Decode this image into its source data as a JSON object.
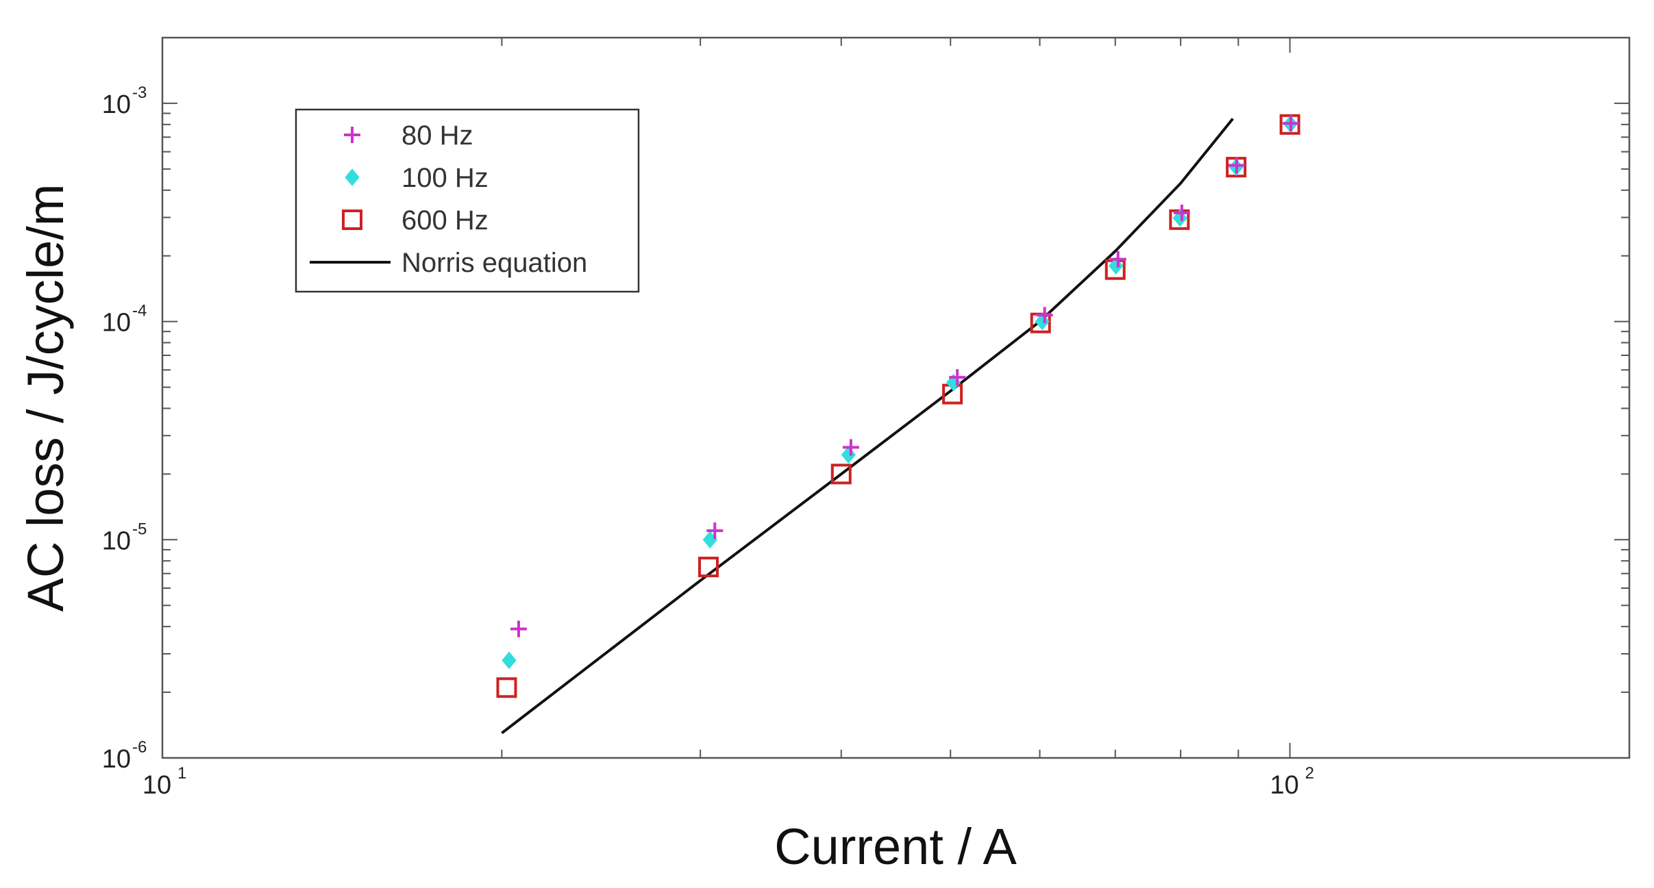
{
  "chart_data": {
    "type": "scatter",
    "title": "",
    "xlabel": "Current / A",
    "ylabel": "AC loss / J/cycle/m",
    "x_scale": "log",
    "y_scale": "log",
    "xlim": [
      10,
      200
    ],
    "ylim": [
      1e-06,
      0.002
    ],
    "x_ticks": [
      {
        "value": 10,
        "base": "10",
        "exp": "1"
      },
      {
        "value": 100,
        "base": "10",
        "exp": "2"
      }
    ],
    "y_ticks": [
      {
        "value": 1e-06,
        "base": "10",
        "exp": "-6"
      },
      {
        "value": 1e-05,
        "base": "10",
        "exp": "-5"
      },
      {
        "value": 0.0001,
        "base": "10",
        "exp": "-4"
      },
      {
        "value": 0.001,
        "base": "10",
        "exp": "-3"
      }
    ],
    "grid": false,
    "legend_position": "top-left",
    "series": [
      {
        "name": "80 Hz",
        "marker": "plus",
        "color": "#cc33cc",
        "points": [
          [
            20.7,
            3.9e-06
          ],
          [
            30.9,
            1.1e-05
          ],
          [
            40.8,
            2.65e-05
          ],
          [
            50.7,
            5.55e-05
          ],
          [
            60.6,
            0.000107
          ],
          [
            70.4,
            0.000193
          ],
          [
            80.2,
            0.000315
          ],
          [
            89.7,
            0.00052
          ],
          [
            100.2,
            0.00081
          ]
        ]
      },
      {
        "name": "100 Hz",
        "marker": "diamond",
        "color": "#33dddd",
        "points": [
          [
            20.3,
            2.8e-06
          ],
          [
            30.6,
            1e-05
          ],
          [
            40.6,
            2.45e-05
          ],
          [
            50.3,
            5.25e-05
          ],
          [
            60.3,
            0.0001
          ],
          [
            70.1,
            0.00018
          ],
          [
            79.9,
            0.000298
          ],
          [
            89.6,
            0.00051
          ],
          [
            100.1,
            0.000805
          ]
        ]
      },
      {
        "name": "600 Hz",
        "marker": "square",
        "color": "#cc2222",
        "points": [
          [
            20.2,
            2.1e-06
          ],
          [
            30.5,
            7.5e-06
          ],
          [
            40.0,
            2e-05
          ],
          [
            50.2,
            4.65e-05
          ],
          [
            60.1,
            9.85e-05
          ],
          [
            70.0,
            0.000173
          ],
          [
            79.8,
            0.000293
          ],
          [
            89.6,
            0.00051
          ],
          [
            100.0,
            0.0008
          ]
        ]
      },
      {
        "name": "Norris equation",
        "marker": "line",
        "color": "#111111",
        "points": [
          [
            20,
            1.3e-06
          ],
          [
            30,
            6.5e-06
          ],
          [
            40,
            2e-05
          ],
          [
            50,
            4.8e-05
          ],
          [
            60,
            0.0001
          ],
          [
            70,
            0.00021
          ],
          [
            80,
            0.00043
          ],
          [
            89,
            0.00085
          ]
        ]
      }
    ]
  }
}
